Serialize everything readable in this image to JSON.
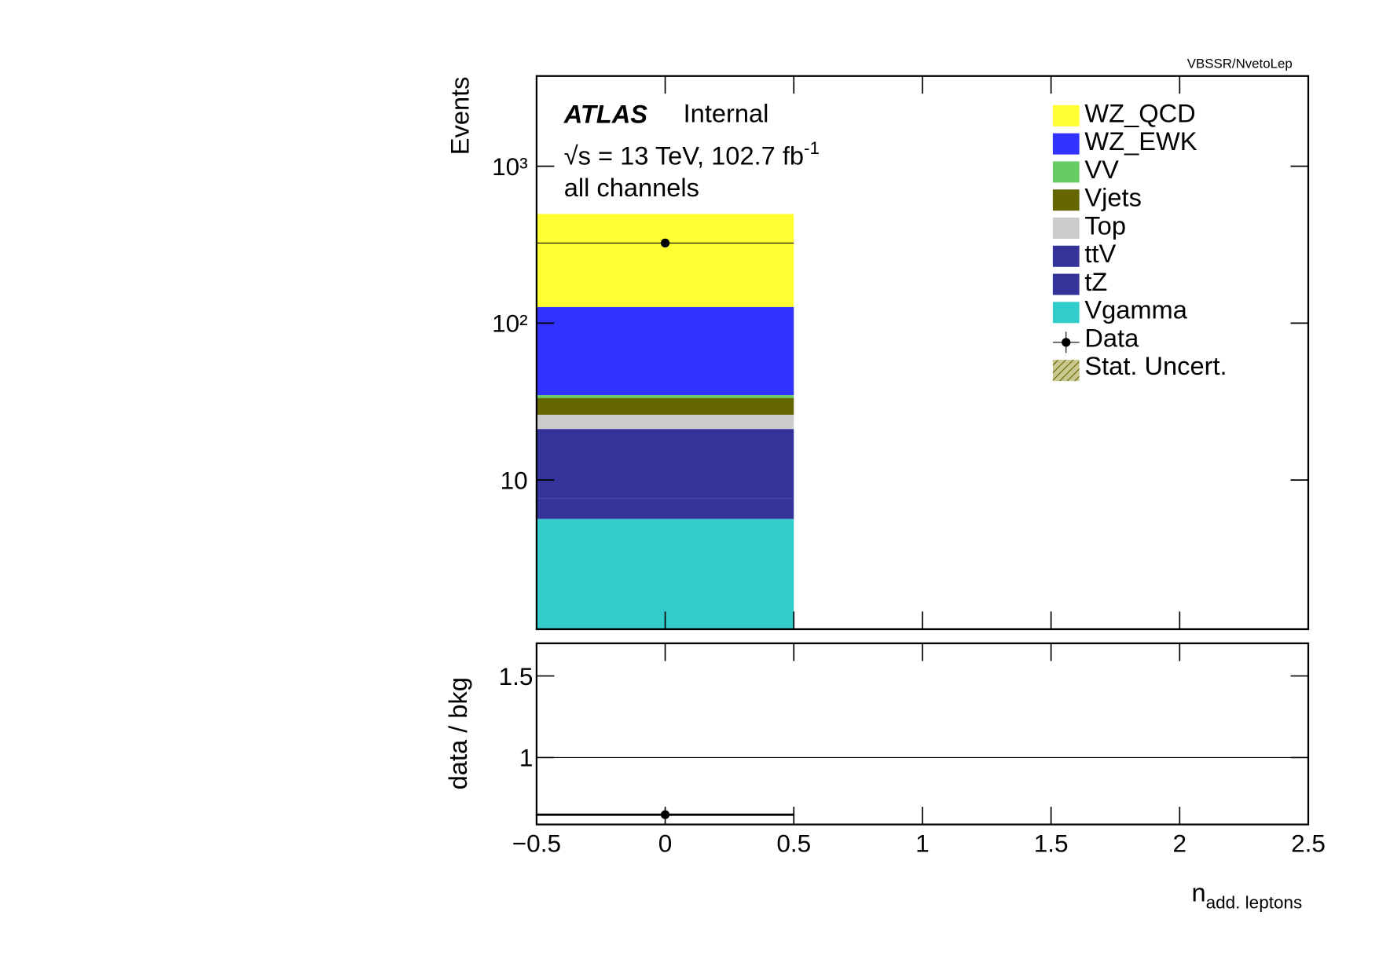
{
  "chart_data": [
    {
      "type": "stacked_histogram",
      "corner_label": "VBSSR/NvetoLep",
      "experiment": "ATLAS",
      "status": "Internal",
      "lumi_text": "√s = 13 TeV, 102.7 fb",
      "lumi_sup": "-1",
      "channel": "all channels",
      "ylabel": "Events",
      "log_y": true,
      "bins": [
        -0.5,
        0.5
      ],
      "xlim": [
        -0.5,
        2.5
      ],
      "ylim": [
        1.12,
        3760
      ],
      "yticks": [
        10,
        {
          "value": 100,
          "label": "10²"
        },
        {
          "value": 1000,
          "label": "10³"
        }
      ],
      "series": [
        {
          "name": "WZ_QCD",
          "color": "#ffff33",
          "values": [
            370
          ]
        },
        {
          "name": "WZ_EWK",
          "color": "#3333ff",
          "values": [
            92
          ]
        },
        {
          "name": "VV",
          "color": "#66cc66",
          "values": [
            1.4
          ]
        },
        {
          "name": "Vjets",
          "color": "#666600",
          "values": [
            7.3
          ]
        },
        {
          "name": "Top",
          "color": "#cccccc",
          "values": [
            4.9
          ]
        },
        {
          "name": "ttV",
          "color": "#333399",
          "values": [
            13.5
          ]
        },
        {
          "name": "tZ",
          "color": "#333399",
          "values": [
            2
          ]
        },
        {
          "name": "Vgamma",
          "color": "#33cccc",
          "values": [
            5.65
          ]
        }
      ],
      "data": {
        "name": "Data",
        "color": "#000000",
        "x": [
          0
        ],
        "values": [
          324
        ]
      },
      "uncertainty_name": "Stat. Uncert."
    },
    {
      "type": "ratio",
      "ylabel": "data / bkg",
      "xlabel": "n",
      "xlabel_sub": "add. leptons",
      "xlim": [
        -0.5,
        2.5
      ],
      "xticks": [
        {
          "value": -0.5,
          "label": "−0.5"
        },
        0,
        0.5,
        1,
        1.5,
        2,
        2.5
      ],
      "ylim": [
        0.59,
        1.7
      ],
      "yticks": [
        1,
        1.5
      ],
      "bins": [
        -0.5,
        0.5
      ],
      "x": [
        0
      ],
      "values": [
        0.65
      ]
    }
  ]
}
